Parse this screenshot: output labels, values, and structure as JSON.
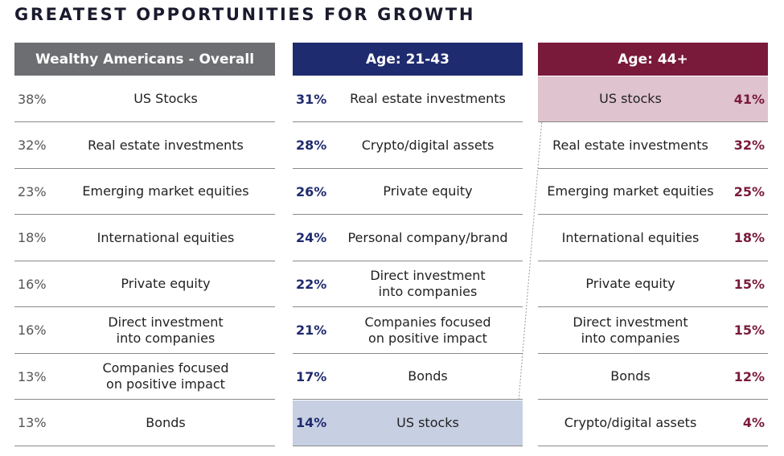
{
  "title": "GREATEST OPPORTUNITIES FOR GROWTH",
  "panels": [
    {
      "header": "Wealthy Americans - Overall",
      "rows": [
        [
          "38%",
          "US Stocks"
        ],
        [
          "32%",
          "Real estate investments"
        ],
        [
          "23%",
          "Emerging market equities"
        ],
        [
          "18%",
          "International equities"
        ],
        [
          "16%",
          "Private equity"
        ],
        [
          "16%",
          "Direct investment\ninto companies"
        ],
        [
          "13%",
          "Companies focused\non positive impact"
        ],
        [
          "13%",
          "Bonds"
        ]
      ]
    },
    {
      "header": "Age: 21-43",
      "rows": [
        [
          "31%",
          "Real estate investments"
        ],
        [
          "28%",
          "Crypto/digital assets"
        ],
        [
          "26%",
          "Private equity"
        ],
        [
          "24%",
          "Personal company/brand"
        ],
        [
          "22%",
          "Direct investment\ninto companies"
        ],
        [
          "21%",
          "Companies focused\non positive impact"
        ],
        [
          "17%",
          "Bonds"
        ],
        [
          "14%",
          "US stocks"
        ]
      ]
    },
    {
      "header": "Age: 44+",
      "rows": [
        [
          "41%",
          "US stocks"
        ],
        [
          "32%",
          "Real estate investments"
        ],
        [
          "25%",
          "Emerging market equities"
        ],
        [
          "18%",
          "International equities"
        ],
        [
          "15%",
          "Private equity"
        ],
        [
          "15%",
          "Direct investment\ninto companies"
        ],
        [
          "12%",
          "Bonds"
        ],
        [
          "4%",
          "Crypto/digital assets"
        ]
      ]
    }
  ]
}
